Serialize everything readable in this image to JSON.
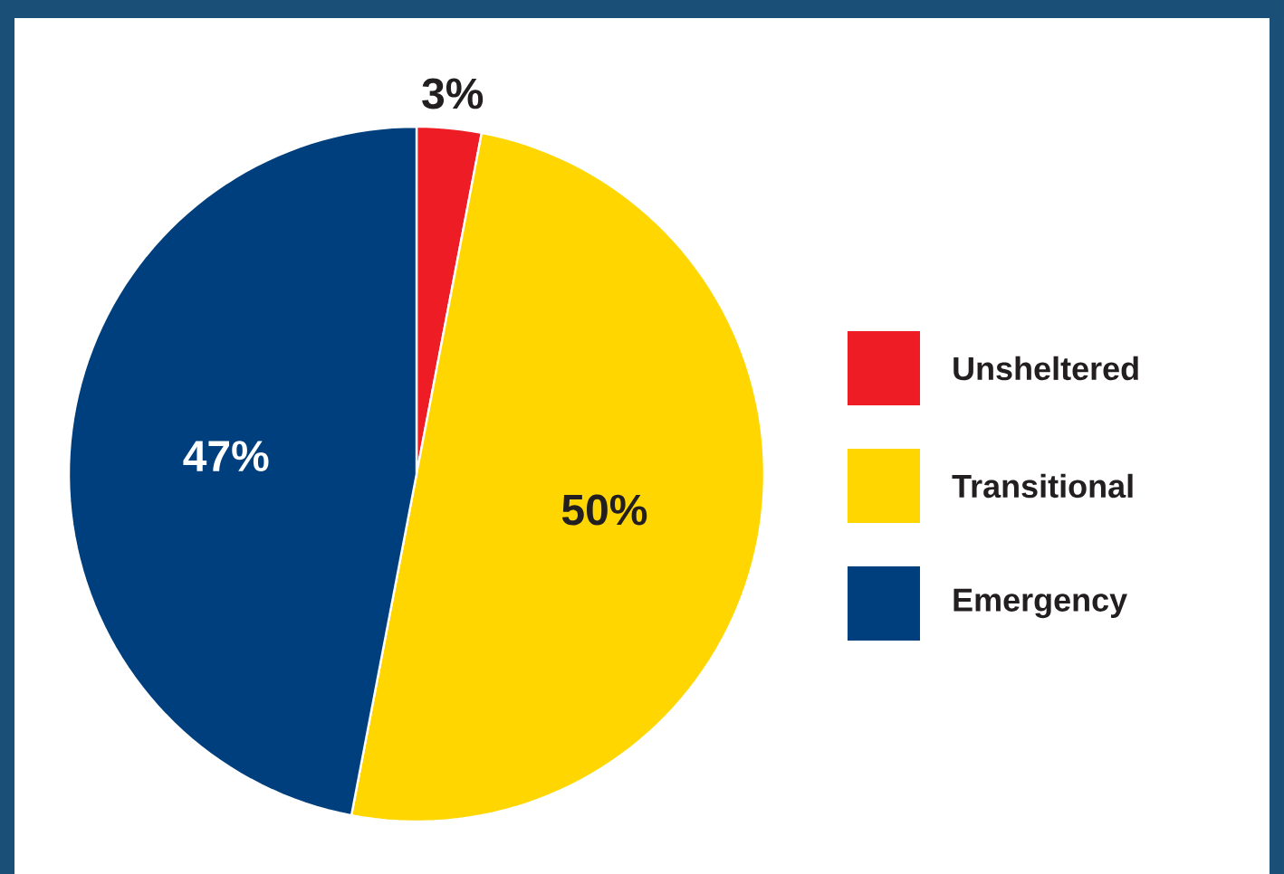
{
  "chart_data": {
    "type": "pie",
    "categories": [
      "Unsheltered",
      "Transitional",
      "Emergency"
    ],
    "values": [
      3,
      50,
      47
    ],
    "colors": [
      "#ee1c25",
      "#ffd600",
      "#003f7d"
    ],
    "value_labels": [
      "3%",
      "50%",
      "47%"
    ],
    "legend": "right"
  }
}
